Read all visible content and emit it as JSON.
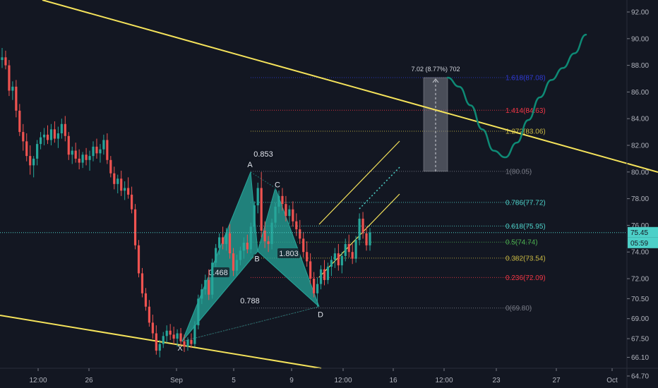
{
  "chart_data": {
    "type": "candlestick",
    "y_axis": {
      "min": 63.8,
      "max": 92.9,
      "ticks": [
        "92.00",
        "90.00",
        "88.00",
        "86.00",
        "84.00",
        "82.00",
        "80.00",
        "78.00",
        "76.00",
        "74.00",
        "72.00",
        "70.50",
        "69.00",
        "67.50",
        "66.10",
        "64.70"
      ]
    },
    "x_axis": {
      "ticks": [
        "12:00",
        "26",
        "Sep",
        "5",
        "9",
        "12:00",
        "16",
        "12:00",
        "23",
        "27",
        "Oct"
      ]
    },
    "price_badges": [
      {
        "label": "75.45",
        "value": 75.45,
        "color": "#4dd0c8",
        "text_color": "#131722"
      },
      {
        "label": "05:59",
        "value": 74.45,
        "color": "#4dd0c8",
        "text_color": "#131722"
      }
    ],
    "fib_levels": [
      {
        "ratio": "1.618",
        "value": 87.08,
        "label": "1.618(87.08)",
        "color": "#2f3ad1"
      },
      {
        "ratio": "1.414",
        "value": 84.63,
        "label": "1.414(84.63)",
        "color": "#f23645"
      },
      {
        "ratio": "1.272",
        "value": 83.06,
        "label": "1.272(83.06)",
        "color": "#c9b843"
      },
      {
        "ratio": "1",
        "value": 80.05,
        "label": "1(80.05)",
        "color": "#787b86"
      },
      {
        "ratio": "0.786",
        "value": 77.72,
        "label": "0.786(77.72)",
        "color": "#4dd0c8"
      },
      {
        "ratio": "0.618",
        "value": 75.95,
        "label": "0.618(75.95)",
        "color": "#4dd0c8"
      },
      {
        "ratio": "0.5",
        "value": 74.74,
        "label": "0.5(74.74)",
        "color": "#4caf50"
      },
      {
        "ratio": "0.382",
        "value": 73.54,
        "label": "0.382(73.54)",
        "color": "#c9b843"
      },
      {
        "ratio": "0.236",
        "value": 72.09,
        "label": "0.236(72.09)",
        "color": "#f23645"
      },
      {
        "ratio": "0",
        "value": 69.8,
        "label": "0(69.80)",
        "color": "#787b86"
      }
    ],
    "harmonic_pattern": {
      "points": [
        {
          "name": "X",
          "value": 67.3
        },
        {
          "name": "A",
          "value": 80.0
        },
        {
          "name": "B",
          "value": 74.05
        },
        {
          "name": "C",
          "value": 78.8
        },
        {
          "name": "D",
          "value": 69.9
        }
      ],
      "ratios": [
        "0.853",
        "0.468",
        "1.803",
        "0.788"
      ]
    },
    "measure": {
      "label": "7.02 (8.77%) 702",
      "from": 80.05,
      "to": 87.08
    },
    "candles": [
      [
        88.4,
        89.3,
        87.8,
        88.6
      ],
      [
        88.6,
        89.1,
        87.7,
        88.0
      ],
      [
        88.0,
        88.4,
        85.7,
        86.1
      ],
      [
        86.1,
        86.8,
        85.4,
        86.4
      ],
      [
        86.4,
        86.9,
        84.1,
        84.6
      ],
      [
        84.6,
        85.1,
        82.7,
        83.0
      ],
      [
        83.0,
        83.6,
        81.6,
        82.3
      ],
      [
        82.3,
        82.9,
        80.8,
        81.2
      ],
      [
        81.2,
        82.0,
        79.8,
        80.5
      ],
      [
        80.5,
        81.2,
        79.6,
        81.0
      ],
      [
        81.0,
        82.4,
        80.5,
        82.1
      ],
      [
        82.1,
        83.0,
        81.7,
        82.6
      ],
      [
        82.6,
        83.3,
        82.0,
        82.8
      ],
      [
        82.8,
        83.5,
        82.1,
        82.4
      ],
      [
        82.4,
        83.6,
        82.0,
        83.2
      ],
      [
        83.2,
        83.8,
        82.2,
        82.5
      ],
      [
        82.5,
        83.4,
        81.8,
        82.9
      ],
      [
        82.9,
        84.0,
        82.5,
        83.6
      ],
      [
        83.6,
        84.2,
        82.3,
        82.7
      ],
      [
        82.7,
        83.0,
        80.9,
        81.3
      ],
      [
        81.3,
        81.9,
        80.6,
        81.6
      ],
      [
        81.6,
        82.2,
        80.7,
        81.0
      ],
      [
        81.0,
        81.7,
        80.2,
        80.7
      ],
      [
        80.7,
        81.5,
        80.3,
        81.3
      ],
      [
        81.3,
        81.8,
        80.5,
        80.9
      ],
      [
        80.9,
        81.6,
        80.1,
        81.2
      ],
      [
        81.2,
        82.3,
        80.8,
        81.9
      ],
      [
        81.9,
        82.5,
        81.0,
        81.4
      ],
      [
        81.4,
        82.1,
        80.7,
        81.7
      ],
      [
        81.7,
        82.8,
        81.3,
        82.4
      ],
      [
        82.4,
        82.9,
        80.6,
        80.9
      ],
      [
        80.9,
        81.2,
        79.6,
        79.9
      ],
      [
        79.9,
        80.4,
        78.7,
        79.1
      ],
      [
        79.1,
        79.8,
        78.4,
        79.5
      ],
      [
        79.5,
        80.1,
        78.2,
        78.6
      ],
      [
        78.6,
        79.3,
        77.9,
        78.8
      ],
      [
        78.8,
        79.6,
        78.0,
        78.3
      ],
      [
        78.3,
        78.9,
        76.9,
        77.2
      ],
      [
        77.2,
        77.6,
        74.2,
        74.5
      ],
      [
        74.5,
        74.9,
        72.1,
        72.4
      ],
      [
        72.4,
        72.8,
        70.6,
        70.9
      ],
      [
        70.9,
        71.3,
        69.6,
        69.9
      ],
      [
        69.9,
        70.4,
        68.4,
        68.7
      ],
      [
        68.7,
        69.3,
        67.5,
        67.9
      ],
      [
        67.9,
        68.5,
        66.3,
        66.6
      ],
      [
        66.6,
        67.4,
        66.1,
        67.1
      ],
      [
        67.1,
        68.0,
        66.8,
        67.7
      ],
      [
        67.7,
        68.5,
        67.2,
        68.1
      ],
      [
        68.1,
        68.6,
        67.4,
        67.8
      ],
      [
        67.8,
        68.4,
        67.1,
        67.5
      ],
      [
        67.5,
        68.2,
        66.9,
        67.9
      ],
      [
        67.9,
        68.3,
        67.0,
        67.3
      ],
      [
        67.3,
        67.8,
        66.5,
        66.9
      ],
      [
        66.9,
        67.6,
        66.6,
        67.4
      ],
      [
        67.4,
        67.9,
        66.8,
        67.1
      ],
      [
        67.1,
        68.8,
        66.9,
        68.5
      ],
      [
        68.5,
        70.8,
        68.2,
        70.5
      ],
      [
        70.5,
        71.6,
        70.1,
        71.2
      ],
      [
        71.2,
        72.3,
        70.8,
        71.9
      ],
      [
        71.9,
        72.7,
        70.4,
        70.8
      ],
      [
        70.8,
        73.5,
        70.5,
        73.2
      ],
      [
        73.2,
        74.6,
        72.9,
        74.3
      ],
      [
        74.3,
        75.4,
        73.8,
        75.1
      ],
      [
        75.1,
        75.9,
        74.2,
        74.6
      ],
      [
        74.6,
        75.8,
        74.1,
        75.4
      ],
      [
        75.4,
        76.1,
        73.5,
        73.9
      ],
      [
        73.9,
        74.3,
        72.2,
        72.6
      ],
      [
        72.6,
        73.8,
        72.2,
        73.4
      ],
      [
        73.4,
        74.4,
        73.0,
        74.1
      ],
      [
        74.1,
        75.1,
        73.5,
        74.7
      ],
      [
        74.7,
        75.3,
        73.9,
        74.2
      ],
      [
        74.2,
        76.2,
        73.9,
        75.9
      ],
      [
        75.9,
        77.8,
        75.5,
        77.5
      ],
      [
        77.5,
        79.2,
        76.9,
        78.8
      ],
      [
        78.8,
        80.0,
        75.1,
        75.6
      ],
      [
        75.6,
        76.3,
        74.3,
        74.8
      ],
      [
        74.8,
        75.2,
        74.0,
        74.6
      ],
      [
        74.6,
        76.5,
        74.2,
        76.2
      ],
      [
        76.2,
        77.7,
        75.8,
        77.4
      ],
      [
        77.4,
        78.6,
        76.9,
        78.2
      ],
      [
        78.2,
        78.8,
        77.1,
        77.6
      ],
      [
        77.6,
        78.2,
        76.3,
        76.7
      ],
      [
        76.7,
        77.5,
        76.1,
        77.2
      ],
      [
        77.2,
        77.8,
        75.9,
        76.3
      ],
      [
        76.3,
        76.9,
        75.2,
        75.7
      ],
      [
        75.7,
        76.4,
        74.6,
        75.0
      ],
      [
        75.0,
        75.5,
        73.6,
        74.0
      ],
      [
        74.0,
        74.8,
        72.9,
        73.3
      ],
      [
        73.3,
        73.9,
        71.6,
        72.0
      ],
      [
        72.0,
        72.5,
        70.6,
        70.9
      ],
      [
        70.9,
        72.1,
        69.9,
        71.6
      ],
      [
        71.6,
        73.0,
        71.2,
        72.7
      ],
      [
        72.7,
        73.4,
        71.5,
        71.9
      ],
      [
        71.9,
        73.2,
        71.6,
        72.9
      ],
      [
        72.9,
        73.7,
        72.2,
        73.4
      ],
      [
        73.4,
        74.3,
        72.8,
        73.9
      ],
      [
        73.9,
        74.6,
        72.6,
        73.0
      ],
      [
        73.0,
        74.0,
        72.4,
        73.7
      ],
      [
        73.7,
        75.0,
        73.3,
        74.6
      ],
      [
        74.6,
        75.3,
        73.6,
        74.0
      ],
      [
        74.0,
        74.6,
        73.1,
        73.5
      ],
      [
        73.5,
        75.2,
        73.2,
        74.9
      ],
      [
        74.9,
        76.9,
        74.5,
        76.5
      ],
      [
        76.5,
        77.0,
        75.0,
        75.4
      ],
      [
        75.4,
        75.9,
        74.1,
        74.5
      ],
      [
        74.5,
        75.8,
        74.1,
        75.45
      ]
    ],
    "forecast_path": [
      87.08,
      86.4,
      85.0,
      83.2,
      81.6,
      81.1,
      82.2,
      83.9,
      85.6,
      86.9,
      87.8,
      88.9,
      90.3
    ]
  }
}
